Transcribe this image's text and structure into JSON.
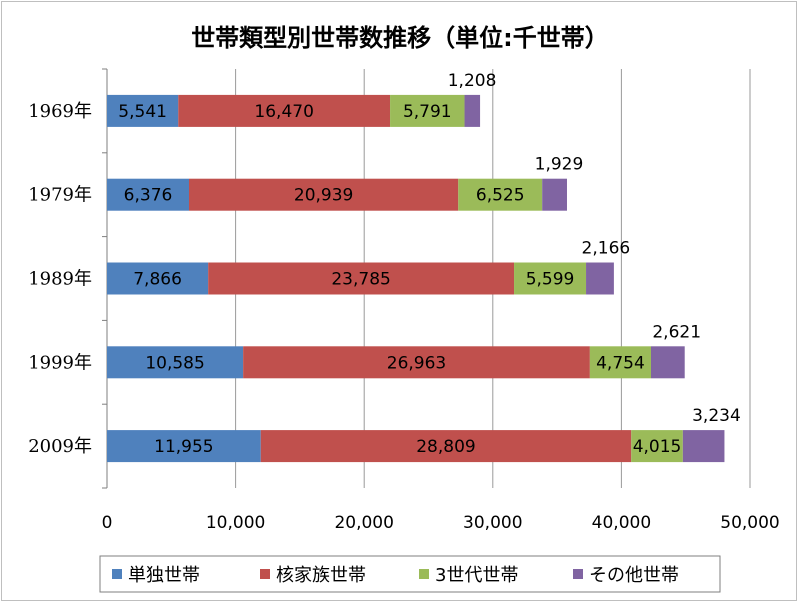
{
  "chart_data": {
    "type": "bar",
    "orientation": "horizontal",
    "stacked": true,
    "title": "世帯類型別世帯数推移（単位:千世帯）",
    "categories": [
      "1969年",
      "1979年",
      "1989年",
      "1999年",
      "2009年"
    ],
    "series": [
      {
        "name": "単独世帯",
        "color": "#4F81BD",
        "values": [
          5541,
          6376,
          7866,
          10585,
          11955
        ],
        "labels": [
          "5,541",
          "6,376",
          "7,866",
          "10,585",
          "11,955"
        ]
      },
      {
        "name": "核家族世帯",
        "color": "#C0504D",
        "values": [
          16470,
          20939,
          23785,
          26963,
          28809
        ],
        "labels": [
          "16,470",
          "20,939",
          "23,785",
          "26,963",
          "28,809"
        ]
      },
      {
        "name": "3世代世帯",
        "color": "#9BBB59",
        "values": [
          5791,
          6525,
          5599,
          4754,
          4015
        ],
        "labels": [
          "5,791",
          "6,525",
          "5,599",
          "4,754",
          "4,015"
        ]
      },
      {
        "name": "その他世帯",
        "color": "#8064A2",
        "values": [
          1208,
          1929,
          2166,
          2621,
          3234
        ],
        "labels": [
          "1,208",
          "1,929",
          "2,166",
          "2,621",
          "3,234"
        ]
      }
    ],
    "xlim": [
      0,
      50000
    ],
    "xticks": [
      0,
      10000,
      20000,
      30000,
      40000,
      50000
    ],
    "xtick_labels": [
      "0",
      "10,000",
      "20,000",
      "30,000",
      "40,000",
      "50,000"
    ],
    "grid": true,
    "legend_position": "bottom"
  }
}
